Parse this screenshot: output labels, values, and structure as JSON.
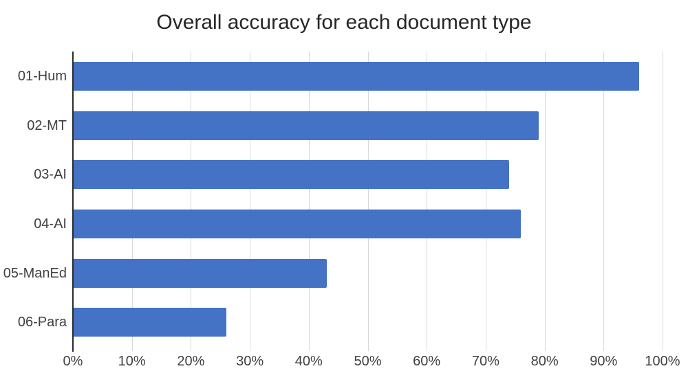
{
  "chart_data": {
    "type": "bar",
    "orientation": "horizontal",
    "title": "Overall accuracy for each document type",
    "categories": [
      "01-Hum",
      "02-MT",
      "03-AI",
      "04-AI",
      "05-ManEd",
      "06-Para"
    ],
    "values": [
      96,
      79,
      74,
      76,
      43,
      26
    ],
    "xlabel": "",
    "ylabel": "",
    "xlim": [
      0,
      100
    ],
    "x_tick_values": [
      0,
      10,
      20,
      30,
      40,
      50,
      60,
      70,
      80,
      90,
      100
    ],
    "x_tick_labels": [
      "0%",
      "10%",
      "20%",
      "30%",
      "40%",
      "50%",
      "60%",
      "70%",
      "80%",
      "90%",
      "100%"
    ],
    "grid": true,
    "legend": false,
    "bar_color": "#4472C4",
    "gridline_color": "#D9D9D9",
    "axis_line_color": "#2B2B2B",
    "label_color": "#404040",
    "title_color": "#262626"
  }
}
